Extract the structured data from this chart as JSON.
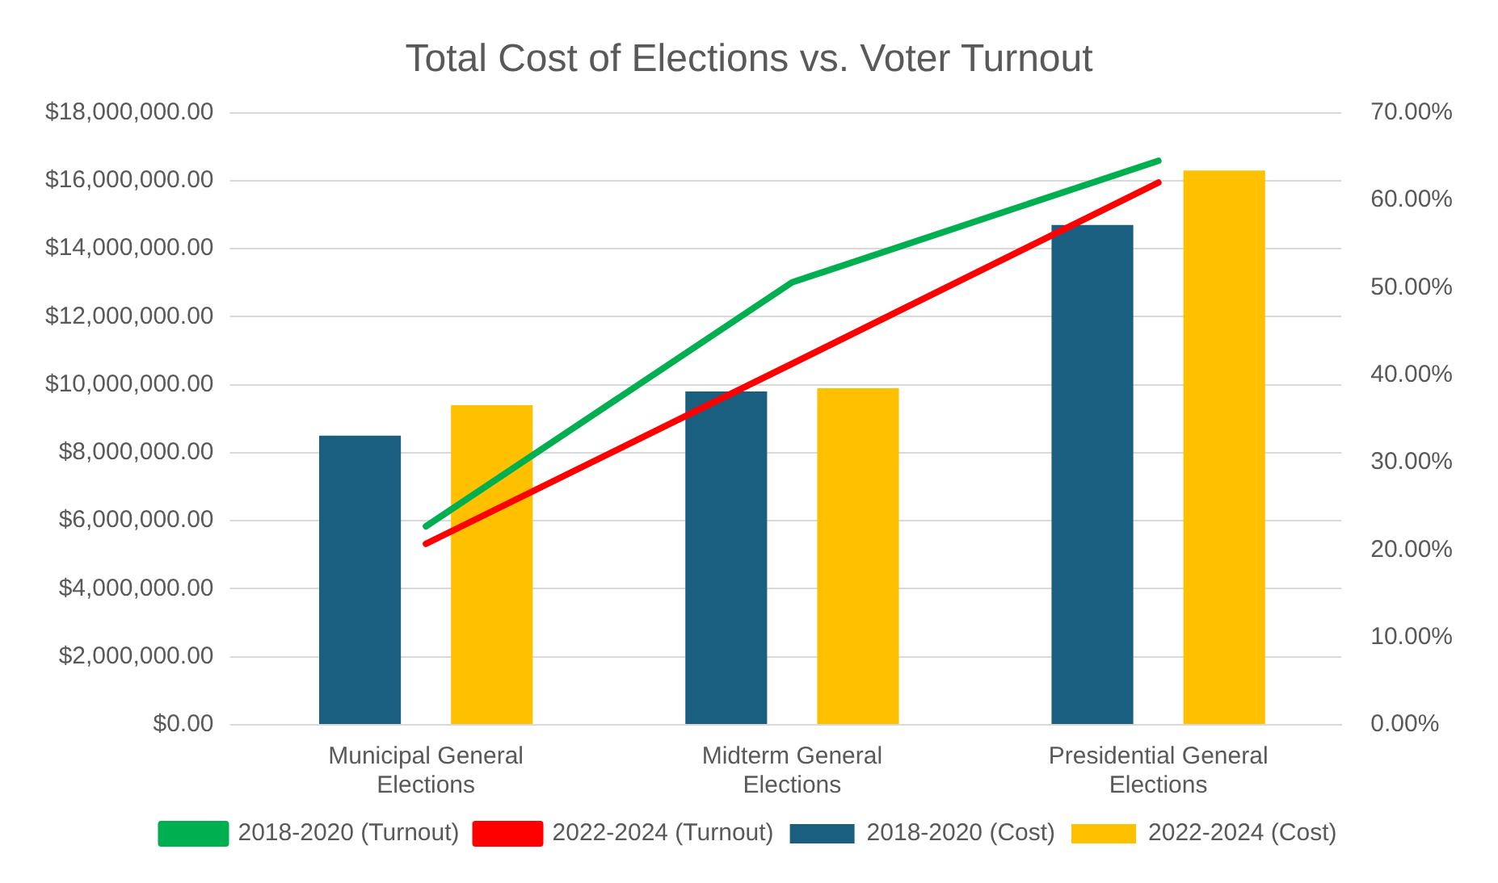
{
  "chart_data": {
    "type": "bar",
    "title": "Total Cost of Elections vs. Voter Turnout",
    "categories": [
      "Municipal General Elections",
      "Midterm General Elections",
      "Presidential General Elections"
    ],
    "series": [
      {
        "name": "2018-2020 (Cost)",
        "color": "#1a5e80",
        "values": [
          8500000,
          9800000,
          14700000
        ]
      },
      {
        "name": "2022-2024 (Cost)",
        "color": "#ffc000",
        "values": [
          9400000,
          9900000,
          16300000
        ]
      },
      {
        "name": "2018-2020 (Turnout)",
        "type": "line",
        "axis": "y2",
        "color": "#00b050",
        "values": [
          22.7,
          50.6,
          64.5
        ]
      },
      {
        "name": "2022-2024 (Turnout)",
        "type": "line",
        "axis": "y2",
        "color": "#ff0000",
        "values": [
          20.7,
          41.3,
          62.0
        ]
      }
    ],
    "ylim": [
      0,
      18000000
    ],
    "yticks": [
      {
        "value": 0,
        "label": "$0.00"
      },
      {
        "value": 2000000,
        "label": "$2,000,000.00"
      },
      {
        "value": 4000000,
        "label": "$4,000,000.00"
      },
      {
        "value": 6000000,
        "label": "$6,000,000.00"
      },
      {
        "value": 8000000,
        "label": "$8,000,000.00"
      },
      {
        "value": 10000000,
        "label": "$10,000,000.00"
      },
      {
        "value": 12000000,
        "label": "$12,000,000.00"
      },
      {
        "value": 14000000,
        "label": "$14,000,000.00"
      },
      {
        "value": 16000000,
        "label": "$16,000,000.00"
      },
      {
        "value": 18000000,
        "label": "$18,000,000.00"
      }
    ],
    "y2lim": [
      0,
      70
    ],
    "y2ticks": [
      {
        "value": 0,
        "label": "0.00%"
      },
      {
        "value": 10,
        "label": "10.00%"
      },
      {
        "value": 20,
        "label": "20.00%"
      },
      {
        "value": 30,
        "label": "30.00%"
      },
      {
        "value": 40,
        "label": "40.00%"
      },
      {
        "value": 50,
        "label": "50.00%"
      },
      {
        "value": 60,
        "label": "60.00%"
      },
      {
        "value": 70,
        "label": "70.00%"
      }
    ],
    "grid": "y",
    "legend": "bottom",
    "marker": "none",
    "line_style": "solid"
  }
}
